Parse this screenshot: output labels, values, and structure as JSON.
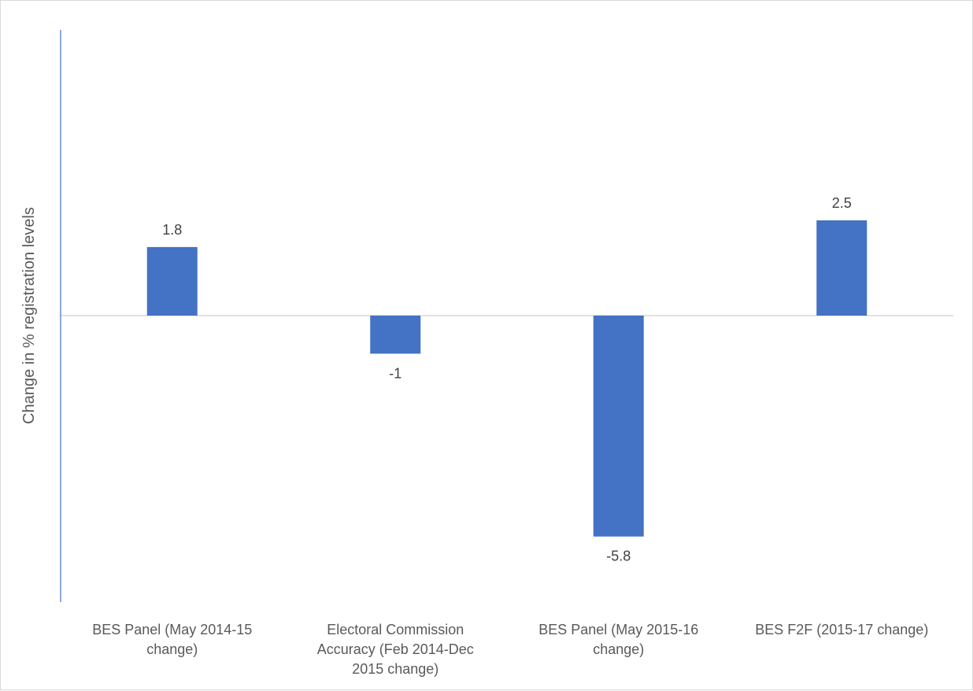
{
  "chart_data": {
    "type": "bar",
    "title": "",
    "xlabel": "",
    "ylabel": "Change in % registration levels",
    "categories": [
      [
        "BES Panel (May 2014-15",
        "change)"
      ],
      [
        "Electoral Commission",
        "Accuracy (Feb 2014-Dec",
        "2015 change)"
      ],
      [
        "BES Panel (May 2015-16",
        "change)"
      ],
      [
        "BES F2F (2015-17 change)"
      ]
    ],
    "values": [
      1.8,
      -1,
      -5.8,
      2.5
    ],
    "data_labels": [
      "1.8",
      "-1",
      "-5.8",
      "2.5"
    ],
    "ylim": [
      -7.5,
      7.5
    ],
    "grid": false,
    "legend": "none",
    "colors": {
      "bar": "#4472C4",
      "axis": "#4472C4",
      "zero_line": "#d9d9d9",
      "text": "#595959",
      "label": "#404040"
    }
  }
}
